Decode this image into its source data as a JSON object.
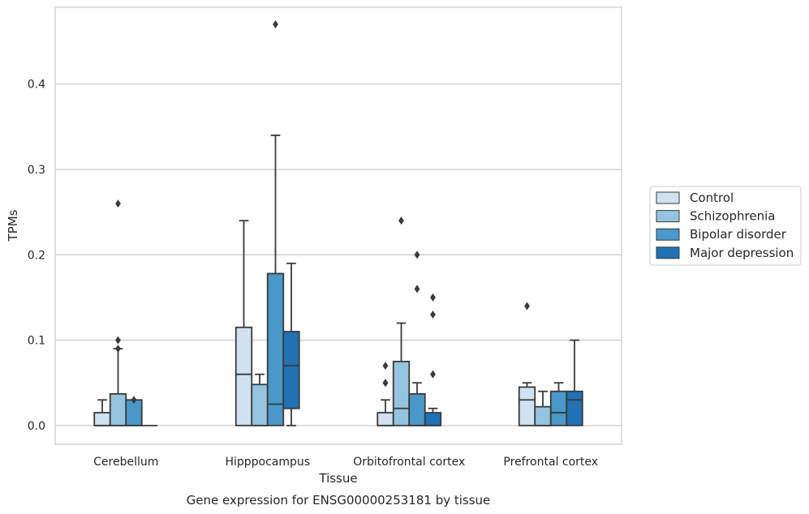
{
  "chart_data": {
    "type": "box",
    "title": "",
    "caption": "Gene expression for ENSG00000253181 by tissue",
    "xlabel": "Tissue",
    "ylabel": "TPMs",
    "ylim": [
      -0.022,
      0.49
    ],
    "yticks": [
      0.0,
      0.1,
      0.2,
      0.3,
      0.4
    ],
    "ytick_labels": [
      "0.0",
      "0.1",
      "0.2",
      "0.3",
      "0.4"
    ],
    "grid": "horizontal",
    "legend_position": "right",
    "categories": [
      "Cerebellum",
      "Hipppocampus",
      "Orbitofrontal cortex",
      "Prefrontal cortex"
    ],
    "colors": {
      "edge": "#3a3a3a",
      "grid": "#cccccc",
      "frame": "#cccccc"
    },
    "series": [
      {
        "name": "Control",
        "color": "#d0e1f2",
        "boxes": [
          {
            "q1": 0.0,
            "median": 0.0,
            "q3": 0.015,
            "whislo": 0.0,
            "whishi": 0.03,
            "fliers": []
          },
          {
            "q1": 0.0,
            "median": 0.06,
            "q3": 0.115,
            "whislo": 0.0,
            "whishi": 0.24,
            "fliers": []
          },
          {
            "q1": 0.0,
            "median": 0.0,
            "q3": 0.015,
            "whislo": 0.0,
            "whishi": 0.03,
            "fliers": [
              0.07,
              0.05,
              0.05
            ]
          },
          {
            "q1": 0.0,
            "median": 0.03,
            "q3": 0.045,
            "whislo": 0.0,
            "whishi": 0.05,
            "fliers": [
              0.14
            ]
          }
        ]
      },
      {
        "name": "Schizophrenia",
        "color": "#94c4df",
        "boxes": [
          {
            "q1": 0.0,
            "median": 0.0,
            "q3": 0.037,
            "whislo": 0.0,
            "whishi": 0.09,
            "fliers": [
              0.26,
              0.1,
              0.09
            ]
          },
          {
            "q1": 0.0,
            "median": 0.0,
            "q3": 0.048,
            "whislo": 0.0,
            "whishi": 0.06,
            "fliers": []
          },
          {
            "q1": 0.0,
            "median": 0.02,
            "q3": 0.075,
            "whislo": 0.0,
            "whishi": 0.12,
            "fliers": [
              0.24
            ]
          },
          {
            "q1": 0.0,
            "median": 0.0,
            "q3": 0.022,
            "whislo": 0.0,
            "whishi": 0.04,
            "fliers": []
          }
        ]
      },
      {
        "name": "Bipolar disorder",
        "color": "#4a98c9",
        "boxes": [
          {
            "q1": 0.0,
            "median": 0.0,
            "q3": 0.03,
            "whislo": 0.0,
            "whishi": 0.03,
            "fliers": [
              0.03
            ]
          },
          {
            "q1": 0.0,
            "median": 0.025,
            "q3": 0.178,
            "whislo": 0.0,
            "whishi": 0.34,
            "fliers": [
              0.47
            ]
          },
          {
            "q1": 0.0,
            "median": 0.0,
            "q3": 0.037,
            "whislo": 0.0,
            "whishi": 0.05,
            "fliers": [
              0.2,
              0.16
            ]
          },
          {
            "q1": 0.0,
            "median": 0.015,
            "q3": 0.04,
            "whislo": 0.0,
            "whishi": 0.05,
            "fliers": []
          }
        ]
      },
      {
        "name": "Major depression",
        "color": "#2171b5",
        "boxes": [
          {
            "q1": 0.0,
            "median": 0.0,
            "q3": 0.0,
            "whislo": 0.0,
            "whishi": 0.0,
            "fliers": []
          },
          {
            "q1": 0.02,
            "median": 0.07,
            "q3": 0.11,
            "whislo": 0.0,
            "whishi": 0.19,
            "fliers": []
          },
          {
            "q1": 0.0,
            "median": 0.0,
            "q3": 0.015,
            "whislo": 0.0,
            "whishi": 0.02,
            "fliers": [
              0.15,
              0.13,
              0.06
            ]
          },
          {
            "q1": 0.0,
            "median": 0.03,
            "q3": 0.04,
            "whislo": 0.0,
            "whishi": 0.1,
            "fliers": []
          }
        ]
      }
    ]
  }
}
